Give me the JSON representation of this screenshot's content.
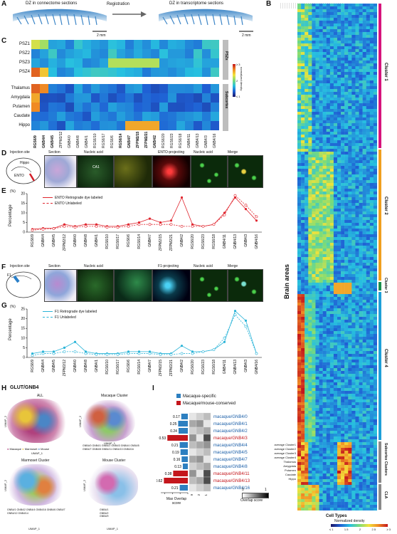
{
  "panelA": {
    "letter": "A",
    "left_title": "DZ in connectome sections",
    "middle": "Registration",
    "right_title": "DZ in transcriptome sections",
    "scale_left": "2 mm",
    "scale_right": "2 mm"
  },
  "panelB": {
    "letter": "B",
    "y_title": "Brain areas",
    "x_title": "Cell Types",
    "clusters": [
      "Cluster 1",
      "Cluster 2",
      "Cluster 3",
      "Cluster 4",
      "Subcortex Clusters",
      "CLA"
    ],
    "cluster_colors": [
      "#d6147c",
      "#f0a020",
      "#1a8f4c",
      "#1fa0d8",
      "#8a8a8a",
      "#8a8a8a"
    ],
    "colorbar_title": "Normalized density",
    "colorbar_ticks": [
      "≤ 1",
      "1.5",
      "2",
      "2.5",
      "≥ 3"
    ],
    "bottom_rows": [
      "average Cluster1",
      "average Cluster2",
      "average Cluster3",
      "average Cluster4",
      "Thalamus",
      "Amygdala",
      "Putamen",
      "Caudate",
      "Hippo"
    ]
  },
  "panelC": {
    "letter": "C",
    "rows_psz": [
      "PSZ1",
      "PSZ2",
      "PSZ3",
      "PSZ4"
    ],
    "rows_sub": [
      "Thalamus",
      "Amygdala",
      "Putamen",
      "Caudate",
      "Hippo"
    ],
    "group_psz": "PSZs",
    "group_sub": "Subcortex",
    "colorbar_title": "normalized density",
    "colorbar_ticks": [
      "≥ 3",
      "2",
      "≤ 1"
    ],
    "columns": [
      "RGS6/9",
      "GNB4/4",
      "GNB4/5",
      "ZFPM2/12",
      "GNB4/0",
      "GNB4/8",
      "GNB4/1",
      "RGS6/10",
      "RGS6/17",
      "RGS6/6",
      "RGS6/14",
      "GNB4/7",
      "ZFPM2/15",
      "ZFPM2/21",
      "GNB4/2",
      "RGS6/20",
      "RGS6/23",
      "RGS6/18",
      "GNB4/11",
      "GNB4/13",
      "GNB4/3",
      "GNB4/16"
    ]
  },
  "panelD": {
    "letter": "D",
    "titles": [
      "Injection site",
      "Section",
      "Nucleic acid",
      "",
      "ENTO-projecting",
      "Nucleic acid",
      "Merge"
    ],
    "sublabels": [
      "a",
      "b",
      "c",
      "d",
      "e",
      "f",
      "g"
    ],
    "region_labels": [
      "Hippo",
      "ENTO",
      "CA1"
    ]
  },
  "panelE": {
    "letter": "E",
    "y_unit": "(%)",
    "y_label": "Percentage",
    "legend": [
      "ENTO Retrograde dye labeled",
      "ENTO Unlabeled"
    ],
    "color": "#e0262f"
  },
  "panelF": {
    "letter": "F",
    "titles": [
      "Injection site",
      "Section",
      "Nucleic acid",
      "",
      "F1-projecting",
      "Nucleic acid",
      "Merge"
    ],
    "sublabels": [
      "a",
      "b",
      "c",
      "d",
      "e",
      "f",
      "g"
    ],
    "region_labels": [
      "F1"
    ]
  },
  "panelG": {
    "letter": "G",
    "y_unit": "(%)",
    "y_label": "Percentage",
    "legend": [
      "F1 Retrograde dye labeled",
      "F1 Unlabeled"
    ],
    "color": "#2ab4d8"
  },
  "panelH": {
    "letter": "H",
    "title": "GLUT/GNB4",
    "subtitles": [
      "ALL",
      "Macaque Cluster",
      "Marmoset Cluster",
      "Mouse Cluster"
    ],
    "species_legend": [
      "Macaque",
      "Marmoset",
      "Mouse"
    ],
    "species_colors": [
      "#b0417d",
      "#e8c53a",
      "#4a86c6"
    ],
    "axis_x": "UMAP_1",
    "axis_y": "UMAP_2",
    "macaque_legend": [
      "GNB4/0",
      "GNB4/1",
      "GNB4/2",
      "GNB4/3",
      "GNB4/4",
      "GNB4/5",
      "GNB4/7",
      "GNB4/8",
      "GNB4/11",
      "GNB4/13",
      "GNB4/16"
    ],
    "marmoset_legend": [
      "GNB4/1",
      "GNB4/2",
      "GNB4/4",
      "GNB4/16",
      "GNB4/6",
      "GNB4/7",
      "GNB4/12",
      "GNB4/14"
    ],
    "mouse_legend": [
      "GNB4/1",
      "GNB4/2",
      "GNB4/9"
    ]
  },
  "panelI": {
    "letter": "I",
    "legend": [
      "Macaque-specific",
      "Macaque/mouse-conserved"
    ],
    "legend_colors": [
      "#2d7fc0",
      "#c4161c"
    ],
    "rows": [
      {
        "label": "macaque/GNB4/0",
        "score": 0.17,
        "conserved": false
      },
      {
        "label": "macaque/GNB4/1",
        "score": 0.25,
        "conserved": false
      },
      {
        "label": "macaque/GNB4/2",
        "score": 0.24,
        "conserved": false
      },
      {
        "label": "macaque/GNB4/3",
        "score": 0.53,
        "conserved": true
      },
      {
        "label": "macaque/GNB4/4",
        "score": 0.21,
        "conserved": false
      },
      {
        "label": "macaque/GNB4/5",
        "score": 0.19,
        "conserved": false
      },
      {
        "label": "macaque/GNB4/7",
        "score": 0.16,
        "conserved": false
      },
      {
        "label": "macaque/GNB4/8",
        "score": 0.13,
        "conserved": false
      },
      {
        "label": "macaque/GNB4/11",
        "score": 0.38,
        "conserved": true
      },
      {
        "label": "macaque/GNB4/13",
        "score": 0.62,
        "conserved": true
      },
      {
        "label": "macaque/GNB4/16",
        "score": 0.21,
        "conserved": false
      }
    ],
    "x_ticks": [
      "0.6",
      "0.4",
      "0.2",
      "0"
    ],
    "x_title": "Max Overlap score",
    "col_labels": [
      "mouse/GNB4/9",
      "mouse/GNB4/2",
      "mouse/GNB4/1"
    ],
    "colorbar_ticks": [
      "0",
      "1"
    ],
    "colorbar_title": "Overlap score"
  }
}
